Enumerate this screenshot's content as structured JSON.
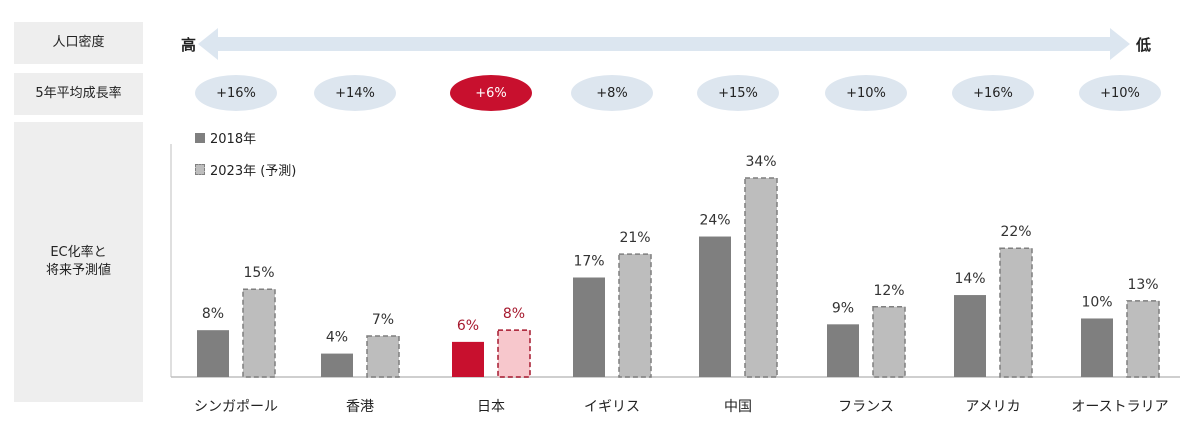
{
  "row_labels": {
    "density": "人口密度",
    "growth": "5年平均成長率",
    "ec_line1": "EC化率と",
    "ec_line2": "将来予測値"
  },
  "density_scale": {
    "high": "高",
    "low": "低"
  },
  "growth_rates": [
    "+16%",
    "+14%",
    "+6%",
    "+8%",
    "+15%",
    "+10%",
    "+16%",
    "+10%"
  ],
  "highlight_index": 2,
  "colors": {
    "bar_2018": "#7f7f7f",
    "bar_2023": "#bdbdbd",
    "highlight_2018": "#c8102e",
    "highlight_2023": "#f7c7cc",
    "highlight_text": "#a6192e",
    "arrow": "#dce6f0",
    "pill": "#dde6ef"
  },
  "chart_data": {
    "type": "bar",
    "categories": [
      "シンガポール",
      "香港",
      "日本",
      "イギリス",
      "中国",
      "フランス",
      "アメリカ",
      "オーストラリア"
    ],
    "series": [
      {
        "name": "2018年",
        "values": [
          8,
          4,
          6,
          17,
          24,
          9,
          14,
          10
        ],
        "labels": [
          "8%",
          "4%",
          "6%",
          "17%",
          "24%",
          "9%",
          "14%",
          "10%"
        ]
      },
      {
        "name": "2023年 (予測)",
        "values": [
          15,
          7,
          8,
          21,
          34,
          12,
          22,
          13
        ],
        "labels": [
          "15%",
          "7%",
          "8%",
          "21%",
          "34%",
          "12%",
          "22%",
          "13%"
        ]
      }
    ],
    "ylim": [
      0,
      37
    ],
    "legend_position": "top-left",
    "grid": false
  }
}
